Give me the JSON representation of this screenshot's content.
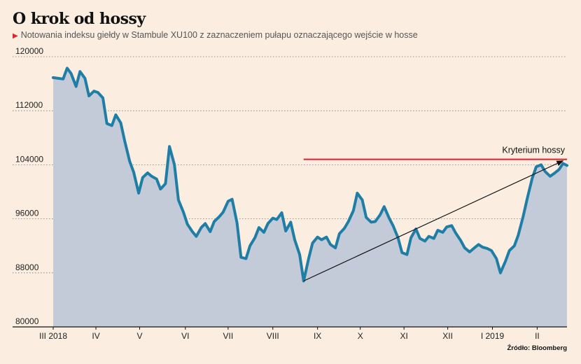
{
  "title": "O krok od hossy",
  "subtitle": "Notowania indeksu giełdy w Stambule XU100 z zaznaczeniem pułapu oznaczającego wejście w hosse",
  "source": "Źródło: Bloomberg",
  "colors": {
    "line": "#1f7ea6",
    "area": "#c4cbd8",
    "threshold": "#d8252d",
    "marker": "#e0262b"
  },
  "chart_data": {
    "type": "area",
    "x_unit": "trading week (0 = start of March 2018)",
    "ylim": [
      80000,
      120000
    ],
    "yticks": [
      80000,
      88000,
      96000,
      104000,
      112000,
      120000
    ],
    "ytick_labels": [
      "80000",
      "88000",
      "96000",
      "104000",
      "112000",
      "120000"
    ],
    "month_labels": [
      {
        "x": 0,
        "label": "III 2018"
      },
      {
        "x": 4.3,
        "label": "IV"
      },
      {
        "x": 8.7,
        "label": "V"
      },
      {
        "x": 13.3,
        "label": "VI"
      },
      {
        "x": 17.6,
        "label": "VII"
      },
      {
        "x": 22.1,
        "label": "VIII"
      },
      {
        "x": 26.6,
        "label": "IX"
      },
      {
        "x": 30.9,
        "label": "X"
      },
      {
        "x": 35.3,
        "label": "XI"
      },
      {
        "x": 39.7,
        "label": "XII"
      },
      {
        "x": 44.2,
        "label": "I 2019"
      },
      {
        "x": 48.7,
        "label": "II"
      }
    ],
    "xlim": [
      0,
      51.7
    ],
    "series": [
      {
        "points": [
          [
            0,
            116900
          ],
          [
            0.5,
            116800
          ],
          [
            1,
            116700
          ],
          [
            1.4,
            118300
          ],
          [
            1.8,
            117500
          ],
          [
            2.3,
            115600
          ],
          [
            2.7,
            117800
          ],
          [
            3.2,
            116800
          ],
          [
            3.6,
            114200
          ],
          [
            4.1,
            114900
          ],
          [
            4.5,
            114700
          ],
          [
            5,
            113900
          ],
          [
            5.4,
            110100
          ],
          [
            5.9,
            109800
          ],
          [
            6.3,
            111400
          ],
          [
            6.8,
            110200
          ],
          [
            7.2,
            107500
          ],
          [
            7.7,
            104500
          ],
          [
            8.1,
            102900
          ],
          [
            8.6,
            99800
          ],
          [
            9,
            102100
          ],
          [
            9.5,
            102800
          ],
          [
            9.9,
            102300
          ],
          [
            10.4,
            101900
          ],
          [
            10.8,
            100400
          ],
          [
            11.3,
            101200
          ],
          [
            11.7,
            106700
          ],
          [
            12.2,
            104000
          ],
          [
            12.6,
            98800
          ],
          [
            13.1,
            97000
          ],
          [
            13.5,
            95200
          ],
          [
            14,
            94100
          ],
          [
            14.4,
            93400
          ],
          [
            14.9,
            94700
          ],
          [
            15.3,
            95300
          ],
          [
            15.8,
            94100
          ],
          [
            16.2,
            95600
          ],
          [
            16.7,
            96300
          ],
          [
            17.1,
            97000
          ],
          [
            17.6,
            98600
          ],
          [
            18,
            98900
          ],
          [
            18.5,
            95400
          ],
          [
            18.9,
            90300
          ],
          [
            19.4,
            90100
          ],
          [
            19.8,
            92000
          ],
          [
            20.3,
            93200
          ],
          [
            20.7,
            94700
          ],
          [
            21.2,
            94000
          ],
          [
            21.6,
            95300
          ],
          [
            22.1,
            96100
          ],
          [
            22.5,
            95900
          ],
          [
            23,
            96900
          ],
          [
            23.4,
            94200
          ],
          [
            23.9,
            95500
          ],
          [
            24.3,
            92900
          ],
          [
            24.8,
            90700
          ],
          [
            25.2,
            86800
          ],
          [
            25.7,
            90100
          ],
          [
            26.1,
            92400
          ],
          [
            26.6,
            93300
          ],
          [
            27,
            92900
          ],
          [
            27.5,
            93300
          ],
          [
            27.9,
            92200
          ],
          [
            28.4,
            91700
          ],
          [
            28.8,
            93800
          ],
          [
            29.3,
            94600
          ],
          [
            29.7,
            95600
          ],
          [
            30.2,
            97200
          ],
          [
            30.6,
            99800
          ],
          [
            31.1,
            98800
          ],
          [
            31.5,
            96200
          ],
          [
            32,
            95500
          ],
          [
            32.4,
            95600
          ],
          [
            32.9,
            96600
          ],
          [
            33.3,
            97800
          ],
          [
            33.8,
            96100
          ],
          [
            34.2,
            95000
          ],
          [
            34.7,
            93200
          ],
          [
            35.1,
            91000
          ],
          [
            35.6,
            90700
          ],
          [
            36,
            93200
          ],
          [
            36.5,
            94500
          ],
          [
            36.9,
            93100
          ],
          [
            37.4,
            92700
          ],
          [
            37.8,
            93400
          ],
          [
            38.3,
            93100
          ],
          [
            38.7,
            94300
          ],
          [
            39.2,
            94000
          ],
          [
            39.6,
            94800
          ],
          [
            40.1,
            95000
          ],
          [
            40.5,
            93900
          ],
          [
            41,
            92800
          ],
          [
            41.4,
            91700
          ],
          [
            41.9,
            91100
          ],
          [
            42.3,
            91600
          ],
          [
            42.8,
            92200
          ],
          [
            43.2,
            91800
          ],
          [
            43.7,
            91600
          ],
          [
            44.1,
            91300
          ],
          [
            44.6,
            90100
          ],
          [
            45,
            88000
          ],
          [
            45.5,
            89700
          ],
          [
            45.9,
            91300
          ],
          [
            46.4,
            92000
          ],
          [
            46.8,
            93600
          ],
          [
            47.3,
            96400
          ],
          [
            47.7,
            99000
          ],
          [
            48.2,
            102000
          ],
          [
            48.6,
            103700
          ],
          [
            49.1,
            104000
          ],
          [
            49.5,
            103000
          ],
          [
            50,
            102300
          ],
          [
            50.4,
            102700
          ],
          [
            50.9,
            103300
          ],
          [
            51.3,
            104200
          ],
          [
            51.7,
            103900
          ]
        ]
      }
    ],
    "threshold": {
      "value": 104800,
      "x_start": 25.2,
      "label": "Kryterium hossy"
    },
    "trend_arrow": {
      "from": [
        25.2,
        86800
      ],
      "to": [
        51.3,
        104600
      ]
    }
  }
}
